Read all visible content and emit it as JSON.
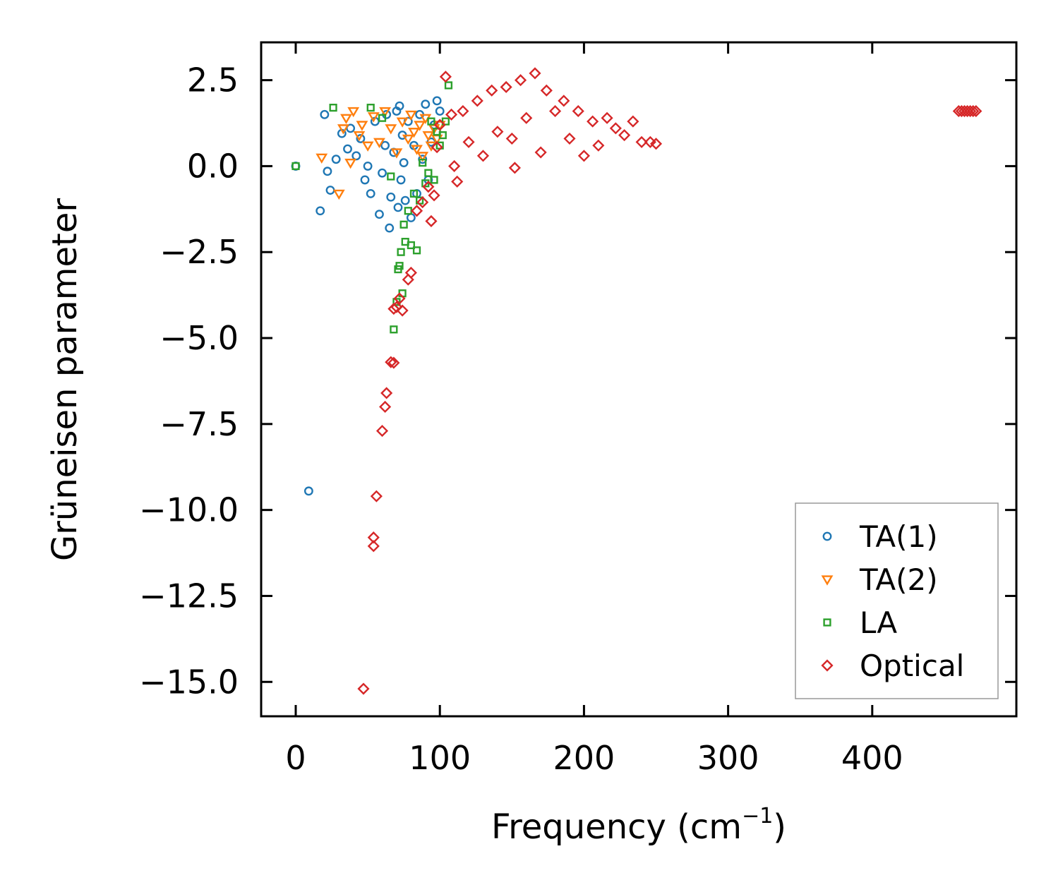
{
  "chart_data": {
    "type": "scatter",
    "title": "",
    "xlabel": "Frequency (cm",
    "xlabel_sup": "−1",
    "xlabel_close": ")",
    "ylabel": "Grüneisen parameter",
    "xlim": [
      -24,
      500
    ],
    "ylim": [
      -16.0,
      3.6
    ],
    "xticks": [
      0,
      100,
      200,
      300,
      400
    ],
    "xtick_labels": [
      "0",
      "100",
      "200",
      "300",
      "400"
    ],
    "yticks": [
      2.5,
      0.0,
      -2.5,
      -5.0,
      -7.5,
      -10.0,
      -12.5,
      -15.0
    ],
    "ytick_labels": [
      "2.5",
      "0.0",
      "−2.5",
      "−5.0",
      "−7.5",
      "−10.0",
      "−12.5",
      "−15.0"
    ],
    "grid": false,
    "legend_position": "lower-right",
    "series": [
      {
        "name": "TA(1)",
        "marker": "circle",
        "color": "#1f77b4",
        "x": [
          0,
          9,
          17,
          20,
          22,
          24,
          28,
          32,
          36,
          38,
          42,
          45,
          48,
          50,
          52,
          55,
          58,
          60,
          62,
          63,
          65,
          66,
          68,
          70,
          71,
          72,
          73,
          74,
          75,
          76,
          78,
          80,
          82,
          84,
          86,
          88,
          90,
          92,
          94,
          96,
          98,
          100
        ],
        "y": [
          0.0,
          -9.45,
          -1.3,
          1.5,
          -0.15,
          -0.7,
          0.2,
          0.95,
          0.5,
          1.1,
          0.3,
          0.8,
          -0.4,
          0.0,
          -0.8,
          1.3,
          -1.4,
          -0.2,
          0.6,
          1.5,
          -1.8,
          -0.9,
          0.4,
          1.6,
          -1.2,
          1.75,
          -0.4,
          0.9,
          0.1,
          -1.0,
          1.3,
          -1.5,
          0.6,
          -0.8,
          1.5,
          0.2,
          1.8,
          -0.4,
          0.7,
          1.2,
          1.9,
          1.6
        ]
      },
      {
        "name": "TA(2)",
        "marker": "triangle-down",
        "color": "#ff7f0e",
        "x": [
          18,
          30,
          33,
          35,
          38,
          40,
          44,
          46,
          50,
          54,
          58,
          62,
          66,
          70,
          74,
          78,
          80,
          82,
          84,
          86,
          88,
          90,
          92,
          94,
          96,
          98,
          100
        ],
        "y": [
          0.25,
          -0.8,
          1.1,
          1.4,
          0.1,
          1.6,
          0.9,
          1.2,
          0.6,
          1.45,
          0.7,
          1.6,
          1.1,
          0.4,
          1.3,
          0.8,
          1.5,
          1.0,
          0.5,
          1.2,
          0.3,
          1.4,
          0.9,
          0.6,
          1.1,
          0.8,
          1.2
        ]
      },
      {
        "name": "LA",
        "marker": "square",
        "color": "#2ca02c",
        "x": [
          0,
          26,
          52,
          60,
          66,
          68,
          70,
          71,
          72,
          73,
          74,
          75,
          76,
          78,
          80,
          82,
          84,
          86,
          88,
          90,
          92,
          94,
          96,
          98,
          100,
          102,
          104,
          106
        ],
        "y": [
          0.0,
          1.7,
          1.7,
          1.4,
          -0.3,
          -4.75,
          -3.95,
          -3.0,
          -2.9,
          -2.5,
          -3.7,
          -1.7,
          -2.2,
          -1.3,
          -2.3,
          -0.8,
          -2.45,
          -1.0,
          0.1,
          -0.5,
          -0.2,
          1.3,
          -0.4,
          1.0,
          0.6,
          0.9,
          1.3,
          2.35
        ]
      },
      {
        "name": "Optical",
        "marker": "diamond",
        "color": "#d62728",
        "x": [
          47,
          54,
          54,
          56,
          60,
          62,
          63,
          66,
          68,
          68,
          70,
          72,
          74,
          78,
          80,
          84,
          88,
          92,
          94,
          96,
          98,
          100,
          104,
          108,
          110,
          112,
          116,
          120,
          126,
          130,
          136,
          140,
          146,
          150,
          152,
          156,
          160,
          166,
          170,
          174,
          180,
          186,
          190,
          196,
          200,
          206,
          210,
          216,
          222,
          228,
          234,
          240,
          246,
          250,
          460,
          462,
          464,
          466,
          468,
          470,
          472
        ],
        "y": [
          -15.2,
          -11.05,
          -10.8,
          -9.6,
          -7.7,
          -7.0,
          -6.6,
          -5.7,
          -5.72,
          -4.15,
          -4.1,
          -3.85,
          -4.2,
          -3.3,
          -3.1,
          -1.3,
          -1.05,
          -0.6,
          -1.6,
          -0.85,
          0.55,
          1.2,
          2.6,
          1.5,
          0.0,
          -0.45,
          1.6,
          0.7,
          1.9,
          0.3,
          2.2,
          1.0,
          2.3,
          0.8,
          -0.05,
          2.5,
          1.4,
          2.7,
          0.4,
          2.2,
          1.6,
          1.9,
          0.8,
          1.6,
          0.3,
          1.3,
          0.6,
          1.4,
          1.1,
          0.9,
          1.3,
          0.7,
          0.7,
          0.65,
          1.6,
          1.6,
          1.6,
          1.6,
          1.6,
          1.6,
          1.6
        ]
      }
    ]
  }
}
